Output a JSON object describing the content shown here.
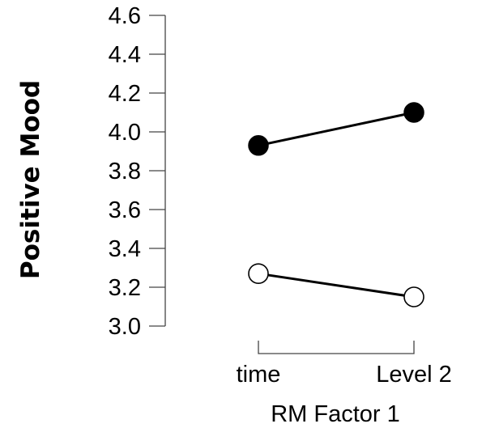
{
  "chart_data": {
    "type": "line",
    "title": "",
    "xlabel": "RM Factor 1",
    "ylabel": "Positive Mood",
    "categories": [
      "time",
      "Level 2"
    ],
    "ylim": [
      3.0,
      4.6
    ],
    "yticks": [
      "3.0",
      "3.2",
      "3.4",
      "3.6",
      "3.8",
      "4.0",
      "4.2",
      "4.4",
      "4.6"
    ],
    "grid": false,
    "legend": "none",
    "series": [
      {
        "values": [
          3.93,
          4.1
        ],
        "marker": "filled-circle",
        "color": "#000000"
      },
      {
        "values": [
          3.27,
          3.15
        ],
        "marker": "open-circle",
        "color": "#000000"
      }
    ]
  }
}
